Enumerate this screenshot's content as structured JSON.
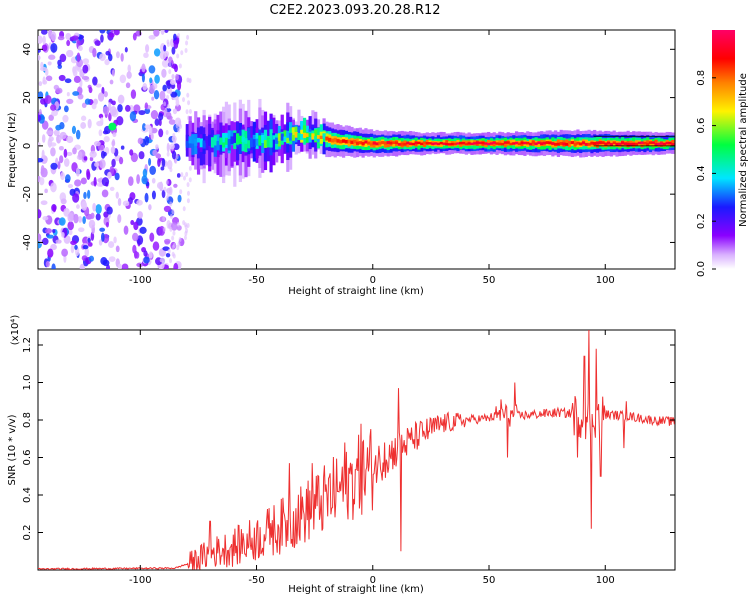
{
  "title": "C2E2.2023.093.20.28.R12",
  "chart_data": [
    {
      "type": "heatmap",
      "xlabel": "Height of straight line (km)",
      "ylabel": "Frequency (Hz)",
      "xlim": [
        -144,
        130
      ],
      "ylim": [
        -51,
        48
      ],
      "xticks": [
        -100,
        -50,
        0,
        50,
        100
      ],
      "yticks": [
        -40,
        -20,
        0,
        20,
        40
      ],
      "colorbar": {
        "label": "Normalized spectral amplitude",
        "range": [
          0,
          1
        ],
        "ticks": [
          0.0,
          0.2,
          0.4,
          0.6,
          0.8
        ],
        "tick_labels": [
          "0.0",
          "0.2",
          "0.4",
          "0.6",
          "0.8"
        ],
        "palette": [
          "#ffffff",
          "#d9b0ff",
          "#8a00ff",
          "#1a1aff",
          "#00e6ff",
          "#00ff40",
          "#fff200",
          "#ff8000",
          "#ff0000",
          "#ff0066"
        ]
      },
      "band": [
        {
          "x": -112,
          "center": 8,
          "width": 6,
          "amp": 0.6
        },
        {
          "x": -75,
          "center": 1,
          "width": 12,
          "amp": 0.35
        },
        {
          "x": -60,
          "center": 2,
          "width": 14,
          "amp": 0.45
        },
        {
          "x": -45,
          "center": 2,
          "width": 12,
          "amp": 0.5
        },
        {
          "x": -30,
          "center": 5,
          "width": 8,
          "amp": 0.7
        },
        {
          "x": -15,
          "center": 2,
          "width": 6,
          "amp": 0.85
        },
        {
          "x": 0,
          "center": 1,
          "width": 5,
          "amp": 0.9
        },
        {
          "x": 25,
          "center": 1,
          "width": 4,
          "amp": 0.92
        },
        {
          "x": 50,
          "center": 1,
          "width": 4,
          "amp": 0.95
        },
        {
          "x": 90,
          "center": 1,
          "width": 5,
          "amp": 0.9
        },
        {
          "x": 130,
          "center": 1,
          "width": 4,
          "amp": 0.95
        }
      ]
    },
    {
      "type": "line",
      "xlabel": "Height of straight line (km)",
      "ylabel": "SNR (10 * v/v)",
      "y_multiplier": "(x10⁴)",
      "xlim": [
        -144,
        130
      ],
      "ylim": [
        0.0,
        1.28
      ],
      "xticks": [
        -100,
        -50,
        0,
        50,
        100
      ],
      "yticks": [
        0.2,
        0.4,
        0.6,
        0.8,
        1.0,
        1.2
      ],
      "ytick_labels": [
        "0.2",
        "0.4",
        "0.6",
        "0.8",
        "1.0",
        "1.2"
      ],
      "color": "#ee3030",
      "trend": {
        "x": [
          -144,
          -110,
          -85,
          -78,
          -70,
          -60,
          -50,
          -40,
          -30,
          -20,
          -10,
          0,
          10,
          20,
          30,
          40,
          50,
          55,
          60,
          70,
          80,
          88,
          92,
          96,
          100,
          110,
          120,
          130
        ],
        "y": [
          0.005,
          0.008,
          0.01,
          0.04,
          0.09,
          0.12,
          0.17,
          0.23,
          0.3,
          0.38,
          0.47,
          0.55,
          0.64,
          0.72,
          0.78,
          0.8,
          0.81,
          0.83,
          0.82,
          0.83,
          0.84,
          0.83,
          0.8,
          0.82,
          0.83,
          0.82,
          0.8,
          0.79
        ]
      },
      "spikes": [
        {
          "x": -70,
          "y": 0.26
        },
        {
          "x": -44,
          "y": 0.25
        },
        {
          "x": -36,
          "y": 0.57
        },
        {
          "x": -26,
          "y": 0.57
        },
        {
          "x": -12,
          "y": 0.68
        },
        {
          "x": -5,
          "y": 0.78
        },
        {
          "x": 5,
          "y": 0.68
        },
        {
          "x": 11,
          "y": 0.97
        },
        {
          "x": 12,
          "y": 0.1
        },
        {
          "x": 20,
          "y": 0.75
        },
        {
          "x": 26,
          "y": 0.81
        },
        {
          "x": 55,
          "y": 0.91
        },
        {
          "x": 58,
          "y": 0.6
        },
        {
          "x": 61,
          "y": 1.0
        },
        {
          "x": 88,
          "y": 0.6
        },
        {
          "x": 91,
          "y": 1.14
        },
        {
          "x": 93,
          "y": 1.28
        },
        {
          "x": 94,
          "y": 0.22
        },
        {
          "x": 96,
          "y": 1.18
        },
        {
          "x": 98,
          "y": 0.5
        },
        {
          "x": 108,
          "y": 0.65
        },
        {
          "x": 109,
          "y": 0.9
        }
      ]
    }
  ]
}
